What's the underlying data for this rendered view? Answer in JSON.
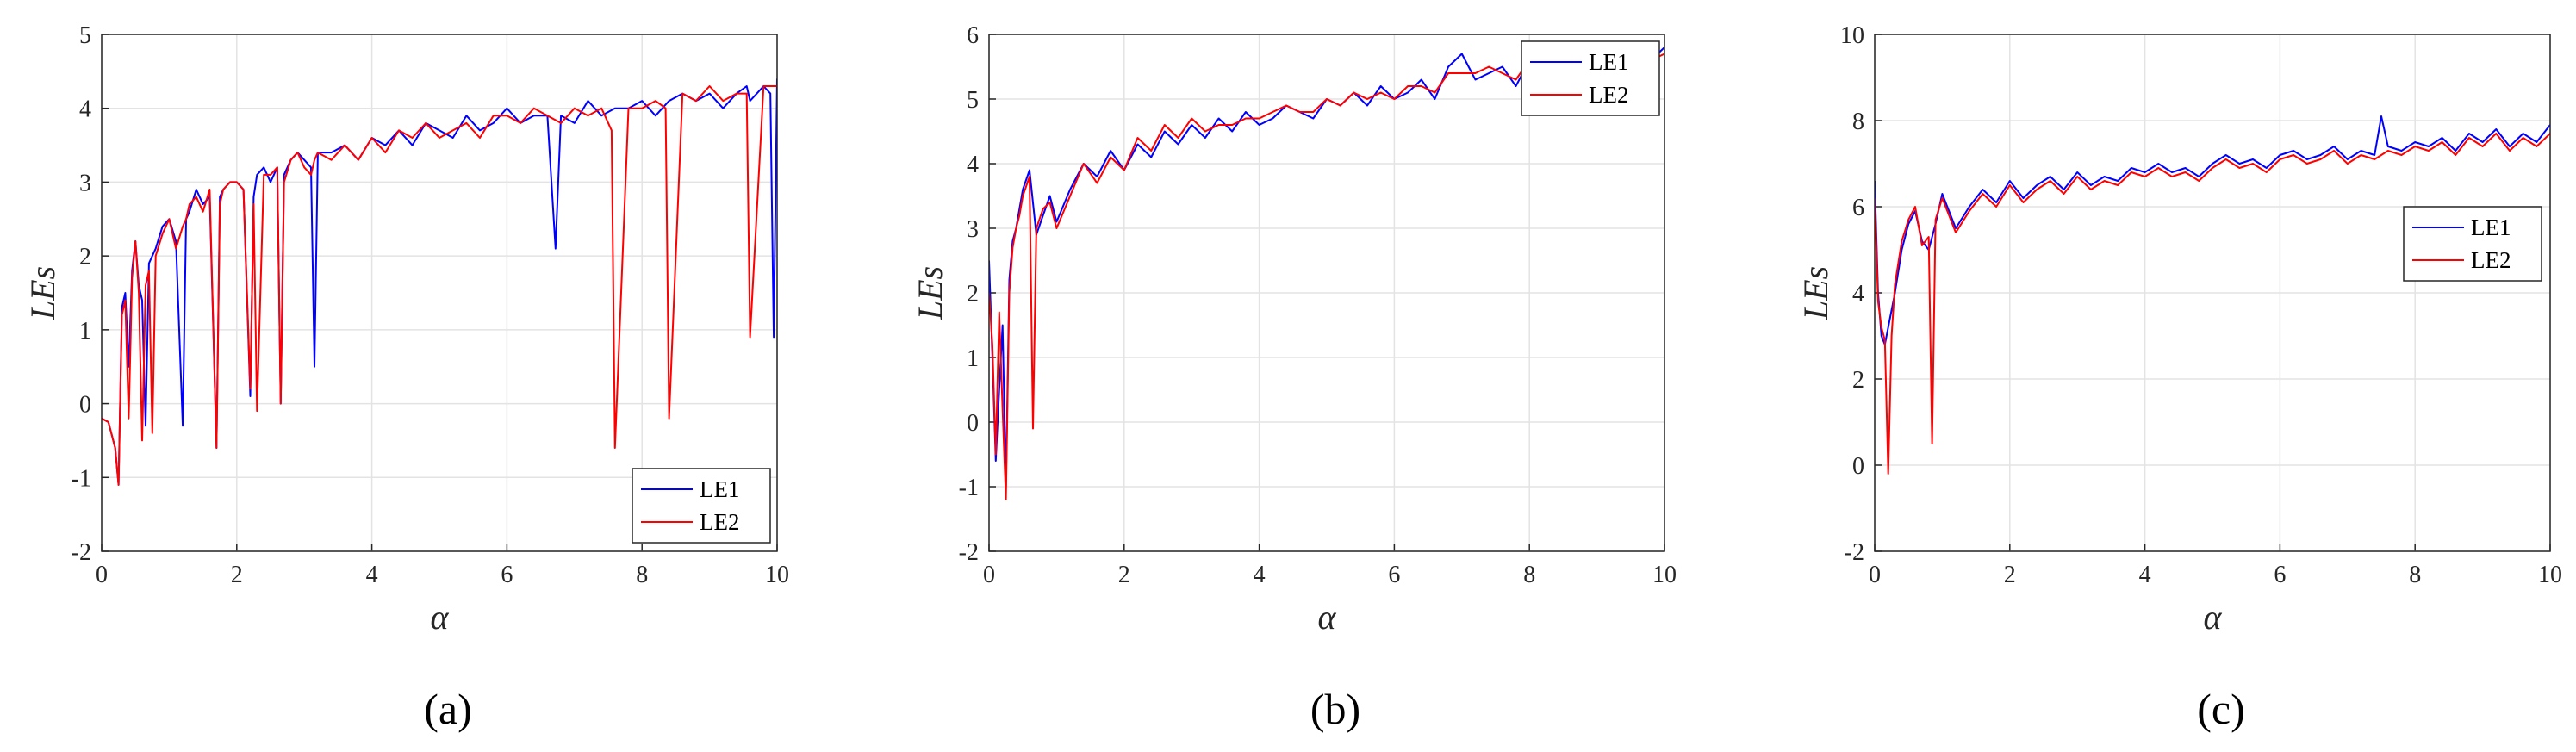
{
  "chart_data": [
    {
      "type": "line",
      "panel_label": "(a)",
      "xlabel": "α",
      "ylabel": "LEs",
      "xlim": [
        0,
        10
      ],
      "ylim": [
        -2,
        5
      ],
      "xticks": [
        "0",
        "2",
        "4",
        "6",
        "8",
        "10"
      ],
      "yticks": [
        "-2",
        "-1",
        "0",
        "1",
        "2",
        "3",
        "4",
        "5"
      ],
      "grid": true,
      "legend_position": "bottom-right",
      "legend_entries": [
        "LE1",
        "LE2"
      ],
      "colors": {
        "LE1": "#0000ff",
        "LE2": "#ff0000"
      },
      "series": [
        {
          "name": "LE1",
          "x": [
            0,
            0.1,
            0.2,
            0.25,
            0.3,
            0.35,
            0.4,
            0.45,
            0.5,
            0.55,
            0.6,
            0.65,
            0.7,
            0.75,
            0.8,
            0.9,
            1.0,
            1.1,
            1.2,
            1.25,
            1.3,
            1.4,
            1.5,
            1.6,
            1.7,
            1.75,
            1.8,
            1.9,
            2.0,
            2.1,
            2.2,
            2.25,
            2.3,
            2.4,
            2.5,
            2.6,
            2.65,
            2.7,
            2.8,
            2.9,
            3.0,
            3.1,
            3.15,
            3.2,
            3.4,
            3.6,
            3.8,
            4.0,
            4.2,
            4.4,
            4.6,
            4.8,
            5.0,
            5.2,
            5.4,
            5.6,
            5.8,
            6.0,
            6.2,
            6.4,
            6.6,
            6.72,
            6.8,
            7.0,
            7.2,
            7.4,
            7.6,
            7.8,
            8.0,
            8.2,
            8.4,
            8.6,
            8.8,
            9.0,
            9.2,
            9.4,
            9.55,
            9.6,
            9.7,
            9.8,
            9.9,
            9.95,
            10.0
          ],
          "y": [
            -0.2,
            -0.25,
            -0.6,
            -1.1,
            1.3,
            1.5,
            0.5,
            1.8,
            2.2,
            1.6,
            1.4,
            -0.3,
            1.9,
            2.0,
            2.1,
            2.4,
            2.5,
            2.2,
            -0.3,
            2.5,
            2.6,
            2.9,
            2.7,
            2.8,
            -0.6,
            2.8,
            2.9,
            3.0,
            3.0,
            2.9,
            0.1,
            2.8,
            3.1,
            3.2,
            3.0,
            3.2,
            0.0,
            3.1,
            3.3,
            3.4,
            3.3,
            3.2,
            0.5,
            3.4,
            3.4,
            3.5,
            3.3,
            3.6,
            3.5,
            3.7,
            3.5,
            3.8,
            3.7,
            3.6,
            3.9,
            3.7,
            3.8,
            4.0,
            3.8,
            3.9,
            3.9,
            2.1,
            3.9,
            3.8,
            4.1,
            3.9,
            4.0,
            4.0,
            4.1,
            3.9,
            4.1,
            4.2,
            4.1,
            4.2,
            4.0,
            4.2,
            4.3,
            4.1,
            4.2,
            4.3,
            4.2,
            0.9,
            4.4
          ]
        },
        {
          "name": "LE2",
          "x": [
            0,
            0.1,
            0.2,
            0.25,
            0.3,
            0.35,
            0.4,
            0.45,
            0.5,
            0.55,
            0.6,
            0.65,
            0.7,
            0.75,
            0.8,
            0.9,
            1.0,
            1.1,
            1.2,
            1.25,
            1.3,
            1.4,
            1.5,
            1.6,
            1.7,
            1.75,
            1.8,
            1.9,
            2.0,
            2.1,
            2.2,
            2.25,
            2.3,
            2.4,
            2.5,
            2.6,
            2.65,
            2.7,
            2.8,
            2.9,
            3.0,
            3.1,
            3.15,
            3.2,
            3.4,
            3.6,
            3.8,
            4.0,
            4.2,
            4.4,
            4.6,
            4.8,
            5.0,
            5.2,
            5.4,
            5.6,
            5.8,
            6.0,
            6.2,
            6.4,
            6.6,
            6.8,
            7.0,
            7.2,
            7.4,
            7.55,
            7.6,
            7.8,
            8.0,
            8.2,
            8.35,
            8.4,
            8.6,
            8.8,
            9.0,
            9.2,
            9.4,
            9.55,
            9.6,
            9.8,
            10.0
          ],
          "y": [
            -0.2,
            -0.25,
            -0.6,
            -1.1,
            1.2,
            1.4,
            -0.2,
            1.7,
            2.2,
            1.5,
            -0.5,
            1.6,
            1.8,
            -0.4,
            2.0,
            2.3,
            2.5,
            2.1,
            2.4,
            2.5,
            2.7,
            2.8,
            2.6,
            2.9,
            -0.6,
            2.7,
            2.9,
            3.0,
            3.0,
            2.9,
            0.2,
            2.7,
            -0.1,
            3.1,
            3.1,
            3.2,
            0.0,
            3.0,
            3.3,
            3.4,
            3.2,
            3.1,
            3.3,
            3.4,
            3.3,
            3.5,
            3.3,
            3.6,
            3.4,
            3.7,
            3.6,
            3.8,
            3.6,
            3.7,
            3.8,
            3.6,
            3.9,
            3.9,
            3.8,
            4.0,
            3.9,
            3.8,
            4.0,
            3.9,
            4.0,
            3.7,
            -0.6,
            4.0,
            4.0,
            4.1,
            4.0,
            -0.2,
            4.2,
            4.1,
            4.3,
            4.1,
            4.2,
            4.2,
            0.9,
            4.3,
            4.3
          ]
        }
      ]
    },
    {
      "type": "line",
      "panel_label": "(b)",
      "xlabel": "α",
      "ylabel": "LEs",
      "xlim": [
        0,
        10
      ],
      "ylim": [
        -2,
        6
      ],
      "xticks": [
        "0",
        "2",
        "4",
        "6",
        "8",
        "10"
      ],
      "yticks": [
        "-2",
        "-1",
        "0",
        "1",
        "2",
        "3",
        "4",
        "5",
        "6"
      ],
      "grid": true,
      "legend_position": "top-right",
      "legend_entries": [
        "LE1",
        "LE2"
      ],
      "colors": {
        "LE1": "#0000ff",
        "LE2": "#ff0000"
      },
      "series": [
        {
          "name": "LE1",
          "x": [
            0,
            0.05,
            0.1,
            0.15,
            0.2,
            0.25,
            0.3,
            0.35,
            0.4,
            0.45,
            0.5,
            0.6,
            0.7,
            0.8,
            0.9,
            1.0,
            1.2,
            1.4,
            1.6,
            1.8,
            2.0,
            2.2,
            2.4,
            2.6,
            2.8,
            3.0,
            3.2,
            3.4,
            3.6,
            3.8,
            4.0,
            4.2,
            4.4,
            4.6,
            4.8,
            5.0,
            5.2,
            5.4,
            5.6,
            5.8,
            6.0,
            6.2,
            6.4,
            6.6,
            6.8,
            7.0,
            7.2,
            7.4,
            7.6,
            7.8,
            8.0,
            8.2,
            8.4,
            8.6,
            8.8,
            9.0,
            9.2,
            9.4,
            9.6,
            9.8,
            10.0
          ],
          "y": [
            2.5,
            1.0,
            -0.6,
            0.5,
            1.5,
            -1.0,
            2.2,
            2.8,
            3.0,
            3.3,
            3.6,
            3.9,
            2.9,
            3.2,
            3.5,
            3.1,
            3.6,
            4.0,
            3.8,
            4.2,
            3.9,
            4.3,
            4.1,
            4.5,
            4.3,
            4.6,
            4.4,
            4.7,
            4.5,
            4.8,
            4.6,
            4.7,
            4.9,
            4.8,
            4.7,
            5.0,
            4.9,
            5.1,
            4.9,
            5.2,
            5.0,
            5.1,
            5.3,
            5.0,
            5.5,
            5.7,
            5.3,
            5.4,
            5.5,
            5.2,
            5.6,
            5.4,
            5.5,
            5.3,
            5.6,
            5.5,
            5.6,
            5.5,
            5.7,
            5.6,
            5.8
          ]
        },
        {
          "name": "LE2",
          "x": [
            0,
            0.05,
            0.1,
            0.15,
            0.2,
            0.25,
            0.3,
            0.35,
            0.4,
            0.45,
            0.5,
            0.6,
            0.65,
            0.7,
            0.8,
            0.9,
            1.0,
            1.2,
            1.4,
            1.6,
            1.8,
            2.0,
            2.2,
            2.4,
            2.6,
            2.8,
            3.0,
            3.2,
            3.4,
            3.6,
            3.8,
            4.0,
            4.2,
            4.4,
            4.6,
            4.8,
            5.0,
            5.2,
            5.4,
            5.6,
            5.8,
            6.0,
            6.2,
            6.4,
            6.6,
            6.8,
            7.0,
            7.2,
            7.4,
            7.6,
            7.8,
            8.0,
            8.2,
            8.4,
            8.6,
            8.8,
            9.0,
            9.2,
            9.4,
            9.6,
            9.8,
            10.0
          ],
          "y": [
            2.0,
            1.2,
            -0.5,
            1.7,
            0.2,
            -1.2,
            2.0,
            2.7,
            3.0,
            3.2,
            3.5,
            3.8,
            -0.1,
            3.0,
            3.3,
            3.4,
            3.0,
            3.5,
            4.0,
            3.7,
            4.1,
            3.9,
            4.4,
            4.2,
            4.6,
            4.4,
            4.7,
            4.5,
            4.6,
            4.6,
            4.7,
            4.7,
            4.8,
            4.9,
            4.8,
            4.8,
            5.0,
            4.9,
            5.1,
            5.0,
            5.1,
            5.0,
            5.2,
            5.2,
            5.1,
            5.4,
            5.4,
            5.4,
            5.5,
            5.4,
            5.3,
            5.6,
            5.4,
            5.5,
            5.4,
            5.6,
            5.5,
            5.6,
            5.6,
            5.7,
            5.6,
            5.7
          ]
        }
      ]
    },
    {
      "type": "line",
      "panel_label": "(c)",
      "xlabel": "α",
      "ylabel": "LEs",
      "xlim": [
        0,
        10
      ],
      "ylim": [
        -2,
        10
      ],
      "xticks": [
        "0",
        "2",
        "4",
        "6",
        "8",
        "10"
      ],
      "yticks": [
        "-2",
        "0",
        "2",
        "4",
        "6",
        "8",
        "10"
      ],
      "grid": true,
      "legend_position": "right",
      "legend_entries": [
        "LE1",
        "LE2"
      ],
      "colors": {
        "LE1": "#0000ff",
        "LE2": "#ff0000"
      },
      "series": [
        {
          "name": "LE1",
          "x": [
            0,
            0.05,
            0.1,
            0.15,
            0.2,
            0.3,
            0.4,
            0.5,
            0.6,
            0.7,
            0.8,
            0.9,
            1.0,
            1.2,
            1.4,
            1.6,
            1.8,
            2.0,
            2.2,
            2.4,
            2.6,
            2.8,
            3.0,
            3.2,
            3.4,
            3.6,
            3.8,
            4.0,
            4.2,
            4.4,
            4.6,
            4.8,
            5.0,
            5.2,
            5.4,
            5.6,
            5.8,
            6.0,
            6.2,
            6.4,
            6.6,
            6.8,
            7.0,
            7.2,
            7.4,
            7.5,
            7.6,
            7.8,
            8.0,
            8.2,
            8.4,
            8.6,
            8.8,
            9.0,
            9.2,
            9.4,
            9.6,
            9.8,
            10.0
          ],
          "y": [
            6.6,
            4.0,
            3.0,
            2.8,
            3.2,
            4.0,
            5.0,
            5.6,
            5.9,
            5.2,
            5.0,
            5.6,
            6.3,
            5.5,
            6.0,
            6.4,
            6.1,
            6.6,
            6.2,
            6.5,
            6.7,
            6.4,
            6.8,
            6.5,
            6.7,
            6.6,
            6.9,
            6.8,
            7.0,
            6.8,
            6.9,
            6.7,
            7.0,
            7.2,
            7.0,
            7.1,
            6.9,
            7.2,
            7.3,
            7.1,
            7.2,
            7.4,
            7.1,
            7.3,
            7.2,
            8.1,
            7.4,
            7.3,
            7.5,
            7.4,
            7.6,
            7.3,
            7.7,
            7.5,
            7.8,
            7.4,
            7.7,
            7.5,
            7.9
          ]
        },
        {
          "name": "LE2",
          "x": [
            0,
            0.05,
            0.1,
            0.15,
            0.2,
            0.25,
            0.3,
            0.4,
            0.5,
            0.6,
            0.7,
            0.8,
            0.85,
            0.9,
            1.0,
            1.2,
            1.4,
            1.6,
            1.8,
            2.0,
            2.2,
            2.4,
            2.6,
            2.8,
            3.0,
            3.2,
            3.4,
            3.6,
            3.8,
            4.0,
            4.2,
            4.4,
            4.6,
            4.8,
            5.0,
            5.2,
            5.4,
            5.6,
            5.8,
            6.0,
            6.2,
            6.4,
            6.6,
            6.8,
            7.0,
            7.2,
            7.4,
            7.6,
            7.8,
            8.0,
            8.2,
            8.4,
            8.6,
            8.8,
            9.0,
            9.2,
            9.4,
            9.6,
            9.8,
            10.0
          ],
          "y": [
            6.2,
            3.8,
            3.2,
            2.9,
            -0.2,
            3.0,
            4.2,
            5.2,
            5.7,
            6.0,
            5.1,
            5.3,
            0.5,
            5.7,
            6.2,
            5.4,
            5.9,
            6.3,
            6.0,
            6.5,
            6.1,
            6.4,
            6.6,
            6.3,
            6.7,
            6.4,
            6.6,
            6.5,
            6.8,
            6.7,
            6.9,
            6.7,
            6.8,
            6.6,
            6.9,
            7.1,
            6.9,
            7.0,
            6.8,
            7.1,
            7.2,
            7.0,
            7.1,
            7.3,
            7.0,
            7.2,
            7.1,
            7.3,
            7.2,
            7.4,
            7.3,
            7.5,
            7.2,
            7.6,
            7.4,
            7.7,
            7.3,
            7.6,
            7.4,
            7.7
          ]
        }
      ]
    }
  ]
}
